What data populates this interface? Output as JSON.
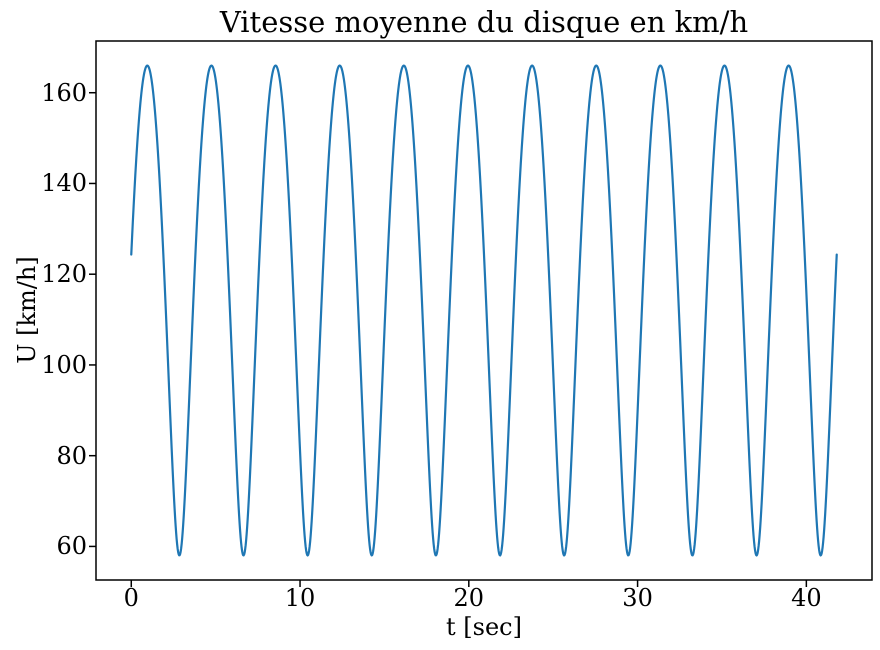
{
  "figure": {
    "background": "#ffffff"
  },
  "chart_data": {
    "type": "line",
    "title": "Vitesse moyenne du disque en km/h",
    "xlabel": "t [sec]",
    "ylabel": "U [km/h]",
    "xlim": [
      -2.09,
      43.89
    ],
    "ylim": [
      52.6,
      171.4
    ],
    "xticks": [
      0,
      10,
      20,
      30,
      40
    ],
    "yticks": [
      60,
      80,
      100,
      120,
      140,
      160
    ],
    "grid": false,
    "legend": null,
    "axis_color": "#000000",
    "text_color": "#000000",
    "tick_length": 7,
    "series": [
      {
        "name": "vitesse-moyenne-du-disque",
        "color": "#1f77b4",
        "line_width": 2.2,
        "model": "U(t) = U0 * sqrt(1 + k^2 + 2*k*sin(2*PI*t/T))",
        "params": {
          "U0": 112.0,
          "k": 0.482,
          "T": 3.8
        },
        "t_range": [
          0,
          41.8
        ],
        "samples": 1400,
        "observed": {
          "start_value": 124.3,
          "end_value": 124.3,
          "peak_value": 166,
          "trough_value": 58,
          "period_sec": 3.8,
          "num_cycles": 11,
          "first_peak_t": 0.95,
          "first_trough_t": 2.85
        }
      }
    ]
  }
}
